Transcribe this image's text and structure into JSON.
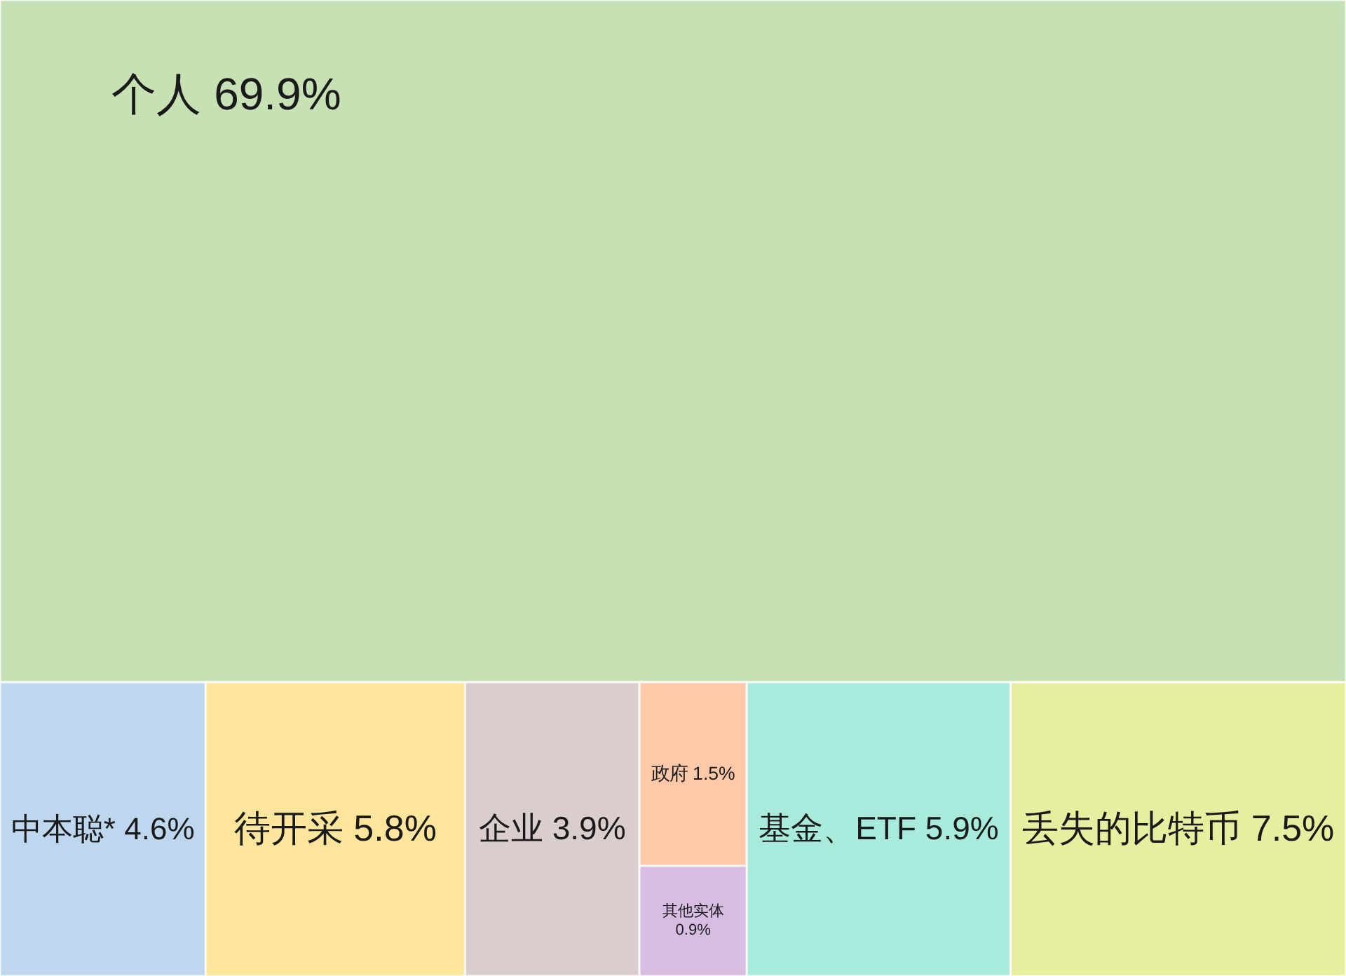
{
  "chart_data": {
    "type": "other",
    "categories": [
      "个人",
      "中本聪*",
      "待开采",
      "企业",
      "政府",
      "其他实体",
      "基金、ETF",
      "丢失的比特币"
    ],
    "values": [
      69.9,
      4.6,
      5.8,
      3.9,
      1.5,
      0.9,
      5.9,
      7.5
    ],
    "value_labels": [
      "69.9%",
      "4.6%",
      "5.8%",
      "3.9%",
      "1.5%",
      "0.9%",
      "5.9%",
      "7.5%"
    ],
    "colors": [
      "#c6e2b5",
      "#bdd7ee",
      "#fde59c",
      "#dacdce",
      "#fdc9a9",
      "#d7bde3",
      "#a8eadb",
      "#e8eea0"
    ]
  }
}
